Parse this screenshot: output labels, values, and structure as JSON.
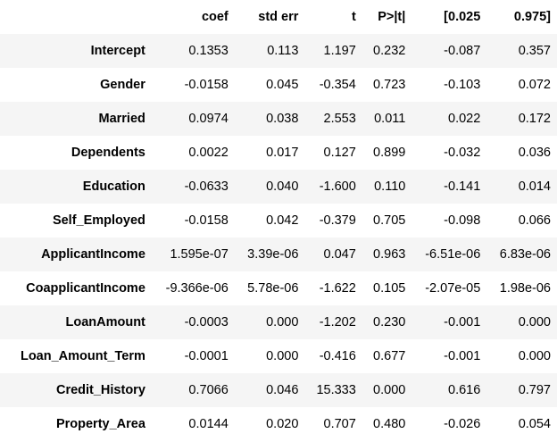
{
  "table": {
    "columns": [
      "",
      "coef",
      "std err",
      "t",
      "P>|t|",
      "[0.025",
      "0.975]"
    ],
    "rows": [
      {
        "name": "Intercept",
        "values": [
          "0.1353",
          "0.113",
          "1.197",
          "0.232",
          "-0.087",
          "0.357"
        ]
      },
      {
        "name": "Gender",
        "values": [
          "-0.0158",
          "0.045",
          "-0.354",
          "0.723",
          "-0.103",
          "0.072"
        ]
      },
      {
        "name": "Married",
        "values": [
          "0.0974",
          "0.038",
          "2.553",
          "0.011",
          "0.022",
          "0.172"
        ]
      },
      {
        "name": "Dependents",
        "values": [
          "0.0022",
          "0.017",
          "0.127",
          "0.899",
          "-0.032",
          "0.036"
        ]
      },
      {
        "name": "Education",
        "values": [
          "-0.0633",
          "0.040",
          "-1.600",
          "0.110",
          "-0.141",
          "0.014"
        ]
      },
      {
        "name": "Self_Employed",
        "values": [
          "-0.0158",
          "0.042",
          "-0.379",
          "0.705",
          "-0.098",
          "0.066"
        ]
      },
      {
        "name": "ApplicantIncome",
        "values": [
          "1.595e-07",
          "3.39e-06",
          "0.047",
          "0.963",
          "-6.51e-06",
          "6.83e-06"
        ]
      },
      {
        "name": "CoapplicantIncome",
        "values": [
          "-9.366e-06",
          "5.78e-06",
          "-1.622",
          "0.105",
          "-2.07e-05",
          "1.98e-06"
        ]
      },
      {
        "name": "LoanAmount",
        "values": [
          "-0.0003",
          "0.000",
          "-1.202",
          "0.230",
          "-0.001",
          "0.000"
        ]
      },
      {
        "name": "Loan_Amount_Term",
        "values": [
          "-0.0001",
          "0.000",
          "-0.416",
          "0.677",
          "-0.001",
          "0.000"
        ]
      },
      {
        "name": "Credit_History",
        "values": [
          "0.7066",
          "0.046",
          "15.333",
          "0.000",
          "0.616",
          "0.797"
        ]
      },
      {
        "name": "Property_Area",
        "values": [
          "0.0144",
          "0.020",
          "0.707",
          "0.480",
          "-0.026",
          "0.054"
        ]
      }
    ]
  }
}
